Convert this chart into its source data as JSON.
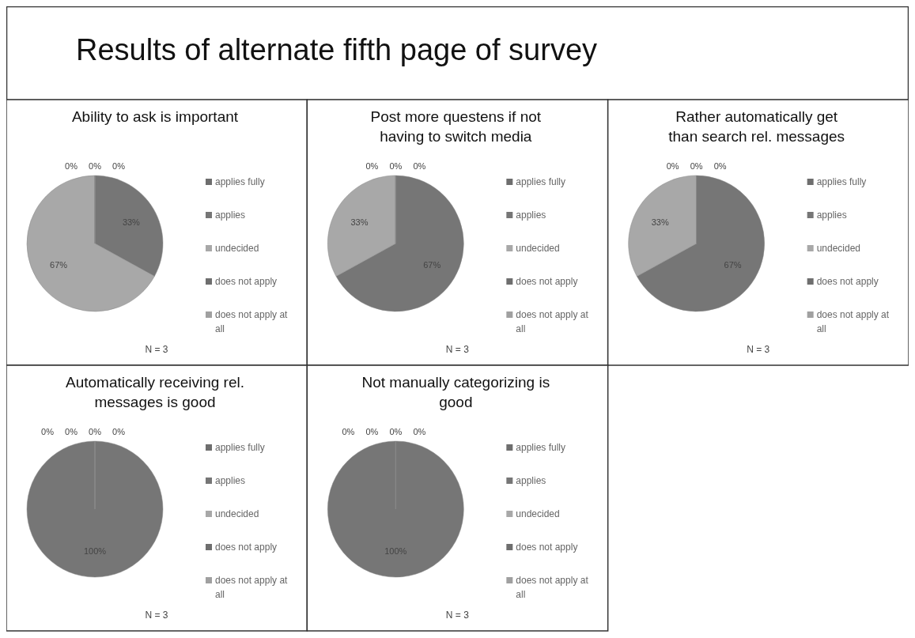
{
  "chart_data": [
    {
      "type": "other",
      "title": "Results of alternate fifth page of survey"
    },
    {
      "type": "pie",
      "title": "Ability to ask is important",
      "categories": [
        "applies fully",
        "applies",
        "undecided",
        "does not apply",
        "does not apply at all"
      ],
      "values": [
        0,
        33,
        67,
        0,
        0
      ],
      "value_labels": [
        "0%",
        "33%",
        "67%",
        "0%",
        "0%"
      ],
      "colors": [
        "#6e6e6e",
        "#767676",
        "#a8a8a8",
        "#6e6e6e",
        "#a0a0a0"
      ],
      "legend": "right",
      "annotations": [
        "N = 3"
      ]
    },
    {
      "type": "pie",
      "title": "Post more questens if not having to switch media",
      "categories": [
        "applies fully",
        "applies",
        "undecided",
        "does not apply",
        "does not apply at all"
      ],
      "values": [
        0,
        67,
        33,
        0,
        0
      ],
      "value_labels": [
        "0%",
        "67%",
        "33%",
        "0%",
        "0%"
      ],
      "colors": [
        "#6e6e6e",
        "#767676",
        "#a8a8a8",
        "#6e6e6e",
        "#a0a0a0"
      ],
      "legend": "right",
      "annotations": [
        "N = 3"
      ]
    },
    {
      "type": "pie",
      "title": "Rather automatically get than search rel. messages",
      "categories": [
        "applies fully",
        "applies",
        "undecided",
        "does not apply",
        "does not apply at all"
      ],
      "values": [
        0,
        67,
        33,
        0,
        0
      ],
      "value_labels": [
        "0%",
        "67%",
        "33%",
        "0%",
        "0%"
      ],
      "colors": [
        "#6e6e6e",
        "#767676",
        "#a8a8a8",
        "#6e6e6e",
        "#a0a0a0"
      ],
      "legend": "right",
      "annotations": [
        "N = 3"
      ]
    },
    {
      "type": "pie",
      "title": "Automatically receiving rel. messages is good",
      "categories": [
        "applies fully",
        "applies",
        "undecided",
        "does not apply",
        "does not apply at all"
      ],
      "values": [
        0,
        100,
        0,
        0,
        0
      ],
      "value_labels": [
        "0%",
        "100%",
        "0%",
        "0%",
        "0%"
      ],
      "colors": [
        "#6e6e6e",
        "#767676",
        "#a8a8a8",
        "#6e6e6e",
        "#a0a0a0"
      ],
      "legend": "right",
      "annotations": [
        "N = 3"
      ]
    },
    {
      "type": "pie",
      "title": "Not manually categorizing is good",
      "categories": [
        "applies fully",
        "applies",
        "undecided",
        "does not apply",
        "does not apply at all"
      ],
      "values": [
        0,
        100,
        0,
        0,
        0
      ],
      "value_labels": [
        "0%",
        "100%",
        "0%",
        "0%",
        "0%"
      ],
      "colors": [
        "#6e6e6e",
        "#767676",
        "#a8a8a8",
        "#6e6e6e",
        "#a0a0a0"
      ],
      "legend": "right",
      "annotations": [
        "N = 3"
      ]
    }
  ]
}
